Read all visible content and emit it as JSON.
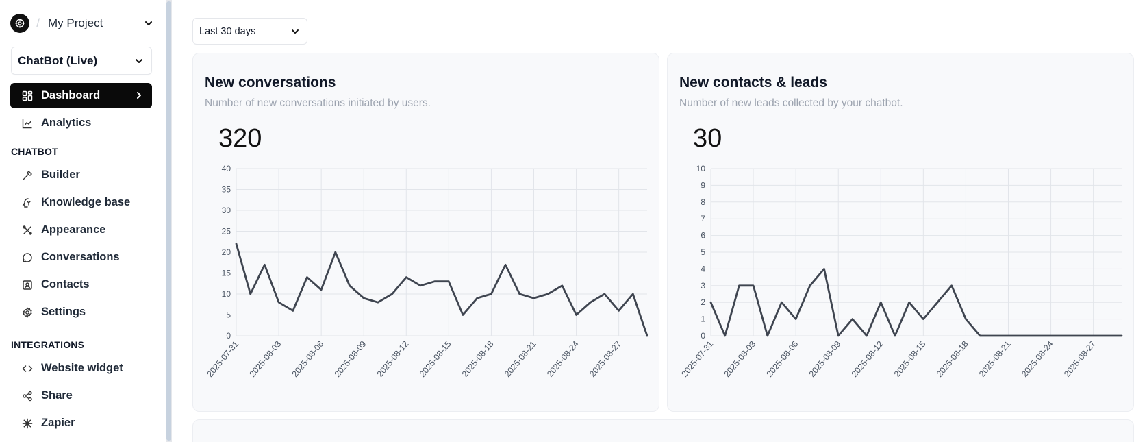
{
  "sidebar": {
    "project_name": "My Project",
    "bot_select": "ChatBot (Live)",
    "nav_main": [
      {
        "label": "Dashboard",
        "icon": "dashboard-icon",
        "active": true
      },
      {
        "label": "Analytics",
        "icon": "analytics-icon"
      }
    ],
    "section_chatbot": "CHATBOT",
    "nav_chatbot": [
      {
        "label": "Builder",
        "icon": "hammer-icon"
      },
      {
        "label": "Knowledge base",
        "icon": "brain-icon"
      },
      {
        "label": "Appearance",
        "icon": "brush-icon"
      },
      {
        "label": "Conversations",
        "icon": "chat-bubble-icon"
      },
      {
        "label": "Contacts",
        "icon": "contact-card-icon"
      },
      {
        "label": "Settings",
        "icon": "gear-icon"
      }
    ],
    "section_integrations": "INTEGRATIONS",
    "nav_integrations": [
      {
        "label": "Website widget",
        "icon": "code-icon"
      },
      {
        "label": "Share",
        "icon": "share-icon"
      },
      {
        "label": "Zapier",
        "icon": "zapier-icon"
      }
    ]
  },
  "main": {
    "date_range": "Last 30 days",
    "cards": [
      {
        "title": "New conversations",
        "subtitle": "Number of new conversations initiated by users.",
        "total": "320"
      },
      {
        "title": "New contacts & leads",
        "subtitle": "Number of new leads collected by your chatbot.",
        "total": "30"
      }
    ]
  },
  "colors": {
    "line": "#3f4550",
    "grid": "#e2e5ea",
    "active_nav": "#0a0a0a"
  },
  "chart_data": [
    {
      "type": "line",
      "title": "New conversations",
      "ylim": [
        0,
        40
      ],
      "yticks": [
        0,
        5,
        10,
        15,
        20,
        25,
        30,
        35,
        40
      ],
      "xtick_labels": [
        "2025-07-31",
        "2025-08-03",
        "2025-08-06",
        "2025-08-09",
        "2025-08-12",
        "2025-08-15",
        "2025-08-18",
        "2025-08-21",
        "2025-08-24",
        "2025-08-27"
      ],
      "x": [
        "2025-07-31",
        "2025-08-01",
        "2025-08-02",
        "2025-08-03",
        "2025-08-04",
        "2025-08-05",
        "2025-08-06",
        "2025-08-07",
        "2025-08-08",
        "2025-08-09",
        "2025-08-10",
        "2025-08-11",
        "2025-08-12",
        "2025-08-13",
        "2025-08-14",
        "2025-08-15",
        "2025-08-16",
        "2025-08-17",
        "2025-08-18",
        "2025-08-19",
        "2025-08-20",
        "2025-08-21",
        "2025-08-22",
        "2025-08-23",
        "2025-08-24",
        "2025-08-25",
        "2025-08-26",
        "2025-08-27",
        "2025-08-28",
        "2025-08-29"
      ],
      "values": [
        22,
        10,
        17,
        8,
        6,
        14,
        11,
        20,
        12,
        9,
        8,
        10,
        14,
        12,
        13,
        13,
        5,
        9,
        10,
        17,
        10,
        9,
        10,
        12,
        5,
        8,
        10,
        6,
        10,
        0
      ]
    },
    {
      "type": "line",
      "title": "New contacts & leads",
      "ylim": [
        0,
        10
      ],
      "yticks": [
        0,
        1,
        2,
        3,
        4,
        5,
        6,
        7,
        8,
        9,
        10
      ],
      "xtick_labels": [
        "2025-07-31",
        "2025-08-03",
        "2025-08-06",
        "2025-08-09",
        "2025-08-12",
        "2025-08-15",
        "2025-08-18",
        "2025-08-21",
        "2025-08-24",
        "2025-08-27"
      ],
      "x": [
        "2025-07-31",
        "2025-08-01",
        "2025-08-02",
        "2025-08-03",
        "2025-08-04",
        "2025-08-05",
        "2025-08-06",
        "2025-08-07",
        "2025-08-08",
        "2025-08-09",
        "2025-08-10",
        "2025-08-11",
        "2025-08-12",
        "2025-08-13",
        "2025-08-14",
        "2025-08-15",
        "2025-08-16",
        "2025-08-17",
        "2025-08-18",
        "2025-08-19",
        "2025-08-20",
        "2025-08-21",
        "2025-08-22",
        "2025-08-23",
        "2025-08-24",
        "2025-08-25",
        "2025-08-26",
        "2025-08-27",
        "2025-08-28",
        "2025-08-29"
      ],
      "values": [
        2,
        0,
        3,
        3,
        0,
        2,
        1,
        3,
        4,
        0,
        1,
        0,
        2,
        0,
        2,
        1,
        2,
        3,
        1,
        0,
        0,
        0,
        0,
        0,
        0,
        0,
        0,
        0,
        0,
        0
      ]
    }
  ]
}
